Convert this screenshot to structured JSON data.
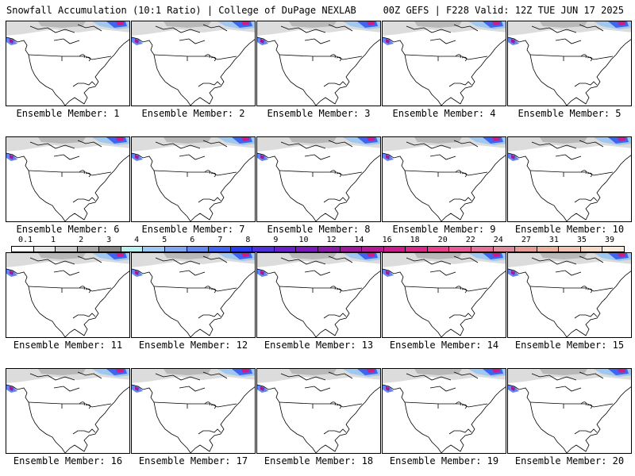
{
  "header": {
    "left": "Snowfall Accumulation (10:1 Ratio) | College of DuPage NEXLAB",
    "right": "00Z GEFS | F228 Valid: 12Z TUE JUN 17 2025"
  },
  "members": [
    {
      "label": "Ensemble Member: 1"
    },
    {
      "label": "Ensemble Member: 2"
    },
    {
      "label": "Ensemble Member: 3"
    },
    {
      "label": "Ensemble Member: 4"
    },
    {
      "label": "Ensemble Member: 5"
    },
    {
      "label": "Ensemble Member: 6"
    },
    {
      "label": "Ensemble Member: 7"
    },
    {
      "label": "Ensemble Member: 8"
    },
    {
      "label": "Ensemble Member: 9"
    },
    {
      "label": "Ensemble Member: 10"
    },
    {
      "label": "Ensemble Member: 11"
    },
    {
      "label": "Ensemble Member: 12"
    },
    {
      "label": "Ensemble Member: 13"
    },
    {
      "label": "Ensemble Member: 14"
    },
    {
      "label": "Ensemble Member: 15"
    },
    {
      "label": "Ensemble Member: 16"
    },
    {
      "label": "Ensemble Member: 17"
    },
    {
      "label": "Ensemble Member: 18"
    },
    {
      "label": "Ensemble Member: 19"
    },
    {
      "label": "Ensemble Member: 20"
    }
  ],
  "color_scale": {
    "ticks": [
      "0.1",
      "1",
      "2",
      "3",
      "4",
      "5",
      "6",
      "7",
      "8",
      "9",
      "10",
      "12",
      "14",
      "16",
      "18",
      "20",
      "22",
      "24",
      "27",
      "31",
      "35",
      "39"
    ],
    "colors": [
      "#ffffff",
      "#e6e6e6",
      "#cccccc",
      "#a8a8a8",
      "#888888",
      "#b8f0f0",
      "#9ec8f0",
      "#7fa8f0",
      "#6088f0",
      "#4064f0",
      "#2a3cf0",
      "#5030d8",
      "#6a20c8",
      "#7a1ab8",
      "#8c1aa8",
      "#a0189c",
      "#b41a94",
      "#c81e8c",
      "#d82888",
      "#e8408c",
      "#e85a96",
      "#e4709a",
      "#e0889c",
      "#e49c94",
      "#eab09c",
      "#f0c4b0",
      "#f6d8c4",
      "#fae8d8"
    ]
  }
}
